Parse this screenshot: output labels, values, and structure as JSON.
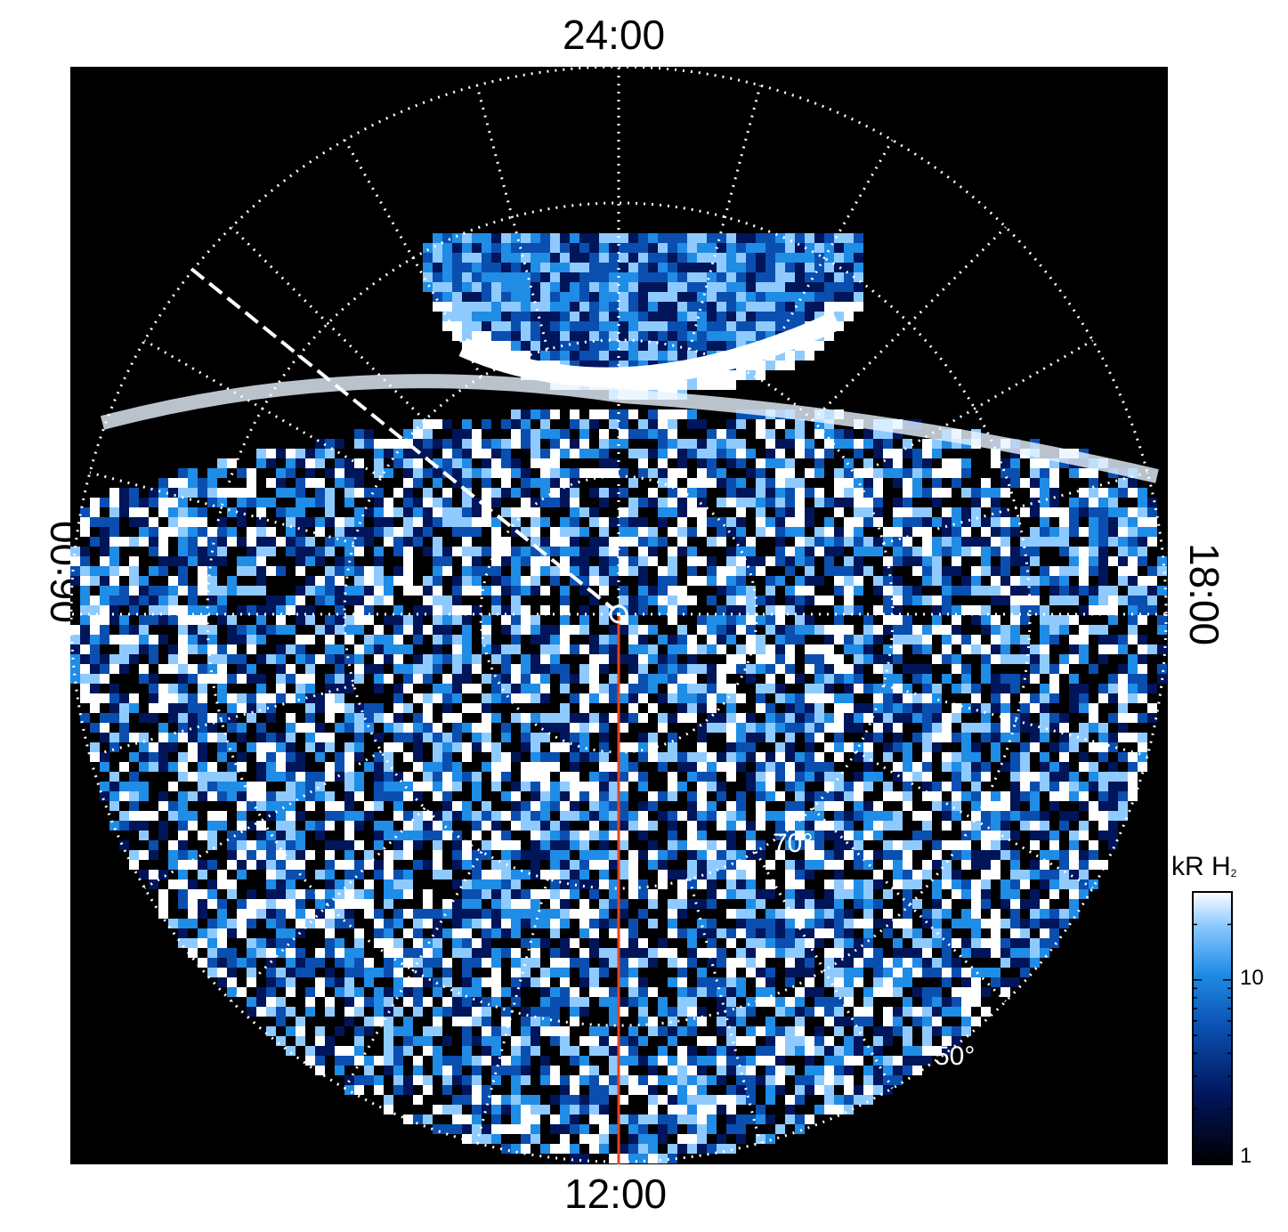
{
  "chart_data": {
    "type": "heatmap",
    "projection": "polar",
    "local_time_labels": {
      "top": "24:00",
      "bottom": "12:00",
      "left": "06:00",
      "right": "18:00"
    },
    "latitude_labels": [
      "70°",
      "50°"
    ],
    "colorbar": {
      "title": "kR H",
      "title_subscript": "2",
      "scale": "log",
      "range": [
        1,
        30
      ],
      "ticks": [
        "10",
        "1"
      ],
      "colors": [
        "#000000",
        "#00155a",
        "#0a4fb0",
        "#1f8ce6",
        "#8fcaff",
        "#ffffff"
      ]
    },
    "grid": true,
    "meridian_line_color": "#e8401a"
  }
}
